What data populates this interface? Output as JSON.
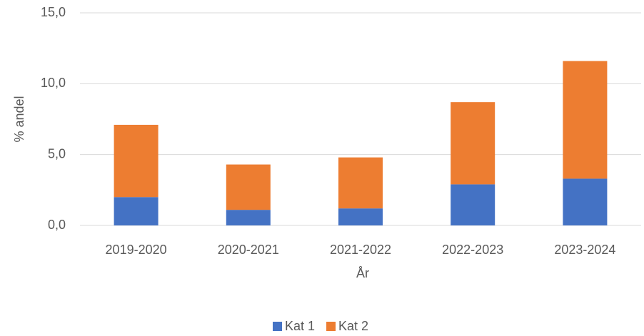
{
  "chart_data": {
    "type": "stacked_bar",
    "x_label": "År",
    "y_label": "% andel",
    "categories": [
      "2019-2020",
      "2020-2021",
      "2021-2022",
      "2022-2023",
      "2023-2024"
    ],
    "series": [
      {
        "name": "Kat 1",
        "color": "#4472c4",
        "values": [
          2.0,
          1.1,
          1.2,
          2.9,
          3.3
        ]
      },
      {
        "name": "Kat 2",
        "color": "#ed7d31",
        "values": [
          5.1,
          3.2,
          3.6,
          5.8,
          8.3
        ]
      }
    ],
    "ylim": [
      0,
      15
    ],
    "yticks": [
      {
        "value": 0,
        "label": "0,0"
      },
      {
        "value": 5,
        "label": "5,0"
      },
      {
        "value": 10,
        "label": "10,0"
      },
      {
        "value": 15,
        "label": "15,0"
      }
    ],
    "grid": true,
    "legend": "bottom"
  }
}
